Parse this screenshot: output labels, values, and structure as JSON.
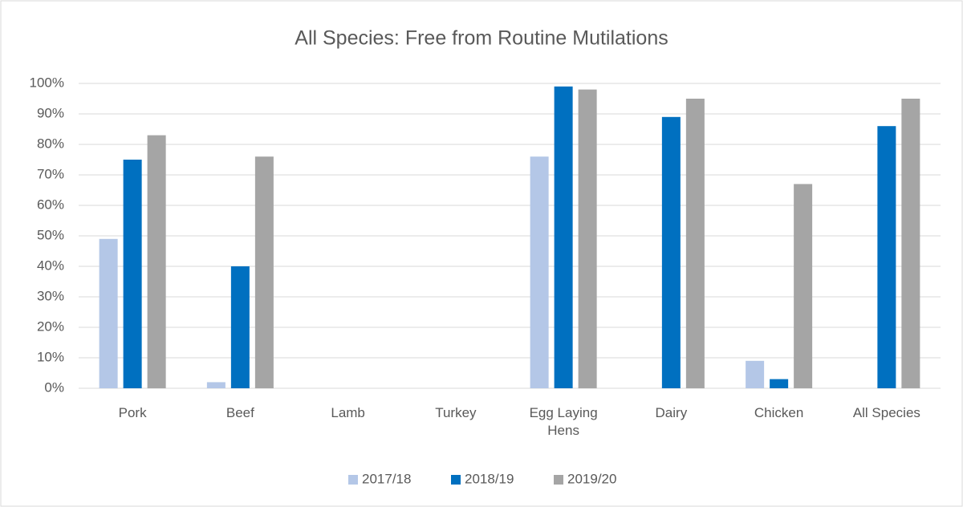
{
  "chart_data": {
    "type": "bar",
    "title": "All Species: Free from Routine Mutilations",
    "categories": [
      "Pork",
      "Beef",
      "Lamb",
      "Turkey",
      "Egg Laying Hens",
      "Dairy",
      "Chicken",
      "All Species"
    ],
    "series": [
      {
        "name": "2017/18",
        "color": "#b4c7e7",
        "values": [
          49,
          2,
          null,
          null,
          76,
          null,
          9,
          null
        ]
      },
      {
        "name": "2018/19",
        "color": "#0070c0",
        "values": [
          75,
          40,
          null,
          null,
          99,
          89,
          3,
          86
        ]
      },
      {
        "name": "2019/20",
        "color": "#a5a5a5",
        "values": [
          83,
          76,
          null,
          null,
          98,
          95,
          67,
          95
        ]
      }
    ],
    "ylim": [
      0,
      100
    ],
    "yticks": [
      {
        "value": 0,
        "label": "0%"
      },
      {
        "value": 10,
        "label": "10%"
      },
      {
        "value": 20,
        "label": "20%"
      },
      {
        "value": 30,
        "label": "30%"
      },
      {
        "value": 40,
        "label": "40%"
      },
      {
        "value": 50,
        "label": "50%"
      },
      {
        "value": 60,
        "label": "60%"
      },
      {
        "value": 70,
        "label": "70%"
      },
      {
        "value": 80,
        "label": "80%"
      },
      {
        "value": 90,
        "label": "90%"
      },
      {
        "value": 100,
        "label": "100%"
      }
    ],
    "grid": true,
    "legend": "bottom"
  }
}
